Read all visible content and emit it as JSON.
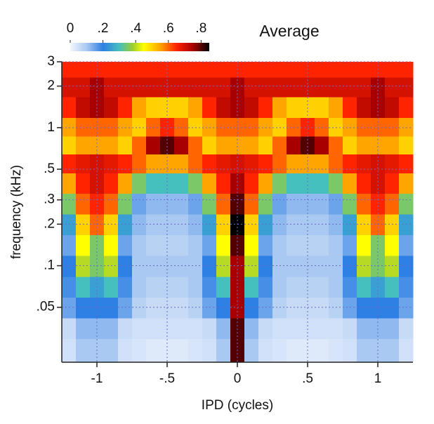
{
  "chart_data": {
    "type": "heatmap",
    "title": "Average",
    "x_label": "IPD (cycles)",
    "y_label": "frequency (kHz)",
    "x": [
      -1.2,
      -1.1,
      -1.0,
      -0.9,
      -0.8,
      -0.7,
      -0.6,
      -0.5,
      -0.4,
      -0.3,
      -0.2,
      -0.1,
      0,
      0.1,
      0.2,
      0.3,
      0.4,
      0.5,
      0.6,
      0.7,
      0.8,
      0.9,
      1.0,
      1.1,
      1.2
    ],
    "y": [
      0.025,
      0.035,
      0.05,
      0.07,
      0.1,
      0.14,
      0.2,
      0.28,
      0.4,
      0.55,
      0.75,
      1.0,
      1.4,
      2.0,
      2.7
    ],
    "z": [
      [
        0.05,
        0.1,
        0.1,
        0.1,
        0.05,
        0.04,
        0.03,
        0.03,
        0.03,
        0.04,
        0.05,
        0.1,
        0.8,
        0.1,
        0.05,
        0.04,
        0.03,
        0.03,
        0.03,
        0.04,
        0.05,
        0.1,
        0.1,
        0.1,
        0.05
      ],
      [
        0.06,
        0.12,
        0.12,
        0.12,
        0.06,
        0.05,
        0.05,
        0.05,
        0.05,
        0.05,
        0.06,
        0.12,
        0.8,
        0.12,
        0.06,
        0.05,
        0.05,
        0.05,
        0.05,
        0.05,
        0.06,
        0.12,
        0.12,
        0.12,
        0.06
      ],
      [
        0.15,
        0.2,
        0.2,
        0.2,
        0.15,
        0.08,
        0.06,
        0.06,
        0.06,
        0.08,
        0.15,
        0.2,
        0.75,
        0.2,
        0.15,
        0.08,
        0.06,
        0.06,
        0.06,
        0.08,
        0.15,
        0.2,
        0.2,
        0.2,
        0.15
      ],
      [
        0.18,
        0.3,
        0.25,
        0.3,
        0.18,
        0.1,
        0.08,
        0.08,
        0.08,
        0.1,
        0.18,
        0.3,
        0.75,
        0.3,
        0.18,
        0.1,
        0.08,
        0.08,
        0.08,
        0.1,
        0.18,
        0.3,
        0.25,
        0.3,
        0.18
      ],
      [
        0.2,
        0.4,
        0.35,
        0.4,
        0.2,
        0.1,
        0.1,
        0.1,
        0.1,
        0.1,
        0.2,
        0.4,
        0.75,
        0.4,
        0.2,
        0.1,
        0.1,
        0.1,
        0.1,
        0.1,
        0.2,
        0.4,
        0.35,
        0.4,
        0.2
      ],
      [
        0.15,
        0.45,
        0.35,
        0.45,
        0.15,
        0.1,
        0.08,
        0.08,
        0.08,
        0.1,
        0.15,
        0.45,
        0.8,
        0.45,
        0.15,
        0.1,
        0.08,
        0.08,
        0.08,
        0.1,
        0.15,
        0.45,
        0.35,
        0.45,
        0.15
      ],
      [
        0.25,
        0.5,
        0.6,
        0.5,
        0.25,
        0.12,
        0.1,
        0.1,
        0.1,
        0.12,
        0.25,
        0.5,
        0.85,
        0.5,
        0.25,
        0.12,
        0.1,
        0.1,
        0.1,
        0.12,
        0.25,
        0.5,
        0.6,
        0.5,
        0.25
      ],
      [
        0.35,
        0.6,
        0.65,
        0.6,
        0.35,
        0.15,
        0.12,
        0.12,
        0.12,
        0.15,
        0.35,
        0.6,
        0.8,
        0.6,
        0.35,
        0.15,
        0.12,
        0.12,
        0.12,
        0.15,
        0.35,
        0.6,
        0.65,
        0.6,
        0.35
      ],
      [
        0.55,
        0.65,
        0.7,
        0.65,
        0.55,
        0.35,
        0.3,
        0.3,
        0.3,
        0.35,
        0.55,
        0.65,
        0.75,
        0.65,
        0.55,
        0.35,
        0.3,
        0.3,
        0.3,
        0.35,
        0.55,
        0.65,
        0.7,
        0.65,
        0.55
      ],
      [
        0.65,
        0.68,
        0.7,
        0.68,
        0.65,
        0.6,
        0.55,
        0.55,
        0.55,
        0.6,
        0.65,
        0.68,
        0.7,
        0.68,
        0.65,
        0.6,
        0.55,
        0.55,
        0.55,
        0.6,
        0.65,
        0.68,
        0.7,
        0.68,
        0.65
      ],
      [
        0.5,
        0.55,
        0.55,
        0.55,
        0.5,
        0.6,
        0.75,
        0.8,
        0.75,
        0.6,
        0.5,
        0.55,
        0.55,
        0.55,
        0.5,
        0.6,
        0.75,
        0.8,
        0.75,
        0.6,
        0.5,
        0.55,
        0.55,
        0.55,
        0.5
      ],
      [
        0.55,
        0.6,
        0.6,
        0.6,
        0.55,
        0.5,
        0.6,
        0.65,
        0.6,
        0.5,
        0.55,
        0.6,
        0.6,
        0.6,
        0.55,
        0.5,
        0.6,
        0.65,
        0.6,
        0.5,
        0.55,
        0.6,
        0.6,
        0.6,
        0.55
      ],
      [
        0.65,
        0.72,
        0.75,
        0.72,
        0.65,
        0.55,
        0.5,
        0.5,
        0.5,
        0.55,
        0.65,
        0.72,
        0.75,
        0.72,
        0.65,
        0.55,
        0.5,
        0.5,
        0.5,
        0.55,
        0.65,
        0.72,
        0.75,
        0.72,
        0.65
      ],
      [
        0.7,
        0.7,
        0.75,
        0.7,
        0.7,
        0.7,
        0.7,
        0.7,
        0.7,
        0.7,
        0.7,
        0.7,
        0.75,
        0.7,
        0.7,
        0.7,
        0.7,
        0.7,
        0.7,
        0.7,
        0.7,
        0.7,
        0.75,
        0.7,
        0.7
      ],
      [
        0.65,
        0.65,
        0.65,
        0.65,
        0.65,
        0.65,
        0.65,
        0.65,
        0.65,
        0.65,
        0.65,
        0.65,
        0.65,
        0.65,
        0.65,
        0.65,
        0.65,
        0.65,
        0.65,
        0.65,
        0.65,
        0.65,
        0.65,
        0.65,
        0.65
      ]
    ],
    "xlim": [
      -1.25,
      1.25
    ],
    "ylim": [
      0.02,
      3
    ],
    "log_y": true,
    "grid": true,
    "xticks": [
      {
        "value": -1,
        "label": "-1"
      },
      {
        "value": -0.5,
        "label": "-.5"
      },
      0,
      {
        "value": 0.5,
        "label": ".5"
      },
      1
    ],
    "yticks": [
      {
        "value": 0.05,
        "label": ".05"
      },
      {
        "value": 0.1,
        "label": ".1"
      },
      {
        "value": 0.2,
        "label": ".2"
      },
      {
        "value": 0.3,
        "label": ".3"
      },
      {
        "value": 0.5,
        "label": ".5"
      },
      1,
      2,
      3
    ],
    "clim": [
      0,
      0.85
    ],
    "cticks": [
      0,
      {
        "value": 0.2,
        "label": ".2"
      },
      {
        "value": 0.4,
        "label": ".4"
      },
      {
        "value": 0.6,
        "label": ".6"
      },
      {
        "value": 0.8,
        "label": ".8"
      }
    ],
    "colorscale": [
      [
        0,
        "#f4f7fd"
      ],
      [
        0.1,
        "#a9c9f2"
      ],
      [
        0.2,
        "#2e7fe4"
      ],
      [
        0.3,
        "#46bfbf"
      ],
      [
        0.38,
        "#9acd32"
      ],
      [
        0.45,
        "#ffff00"
      ],
      [
        0.55,
        "#ffa500"
      ],
      [
        0.65,
        "#ff2400"
      ],
      [
        0.75,
        "#a80000"
      ],
      [
        0.85,
        "#000000"
      ]
    ]
  }
}
